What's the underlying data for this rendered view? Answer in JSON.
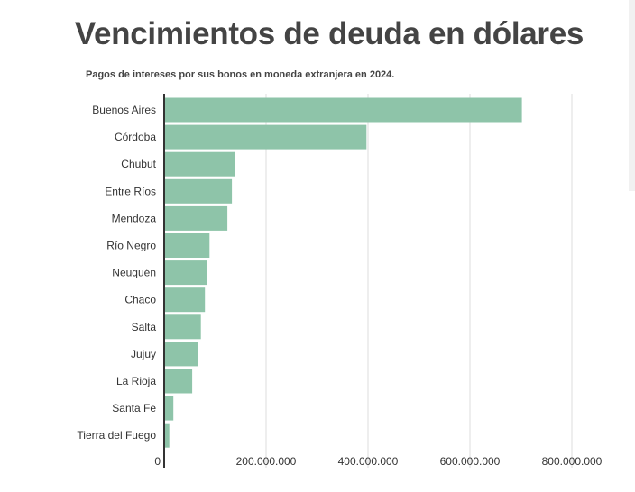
{
  "header": {
    "title": "Vencimientos de deuda en dólares",
    "subtitle": "Pagos de intereses por sus bonos en moneda extranjera en 2024."
  },
  "colors": {
    "bar": "#8ec4a9",
    "grid": "#dddddd",
    "axis": "#333333",
    "text": "#444444"
  },
  "chart_data": {
    "type": "bar",
    "orientation": "horizontal",
    "title": "Vencimientos de deuda en dólares",
    "subtitle": "Pagos de intereses por sus bonos en moneda extranjera en 2024.",
    "categories": [
      "Buenos Aires",
      "Córdoba",
      "Chubut",
      "Entre Ríos",
      "Mendoza",
      "Río Negro",
      "Neuquén",
      "Chaco",
      "Salta",
      "Jujuy",
      "La Rioja",
      "Santa Fe",
      "Tierra del Fuego"
    ],
    "values": [
      702000000,
      397000000,
      139000000,
      133000000,
      124000000,
      89000000,
      84000000,
      80000000,
      72000000,
      67000000,
      55000000,
      18000000,
      10000000
    ],
    "xlim": [
      0,
      800000000
    ],
    "x_ticks": [
      0,
      200000000,
      400000000,
      600000000,
      800000000
    ],
    "x_tick_labels": [
      "0",
      "200.000.000",
      "400.000.000",
      "600.000.000",
      "800.000.000"
    ],
    "xlabel": "",
    "ylabel": "",
    "grid": "vertical",
    "legend": "none"
  }
}
